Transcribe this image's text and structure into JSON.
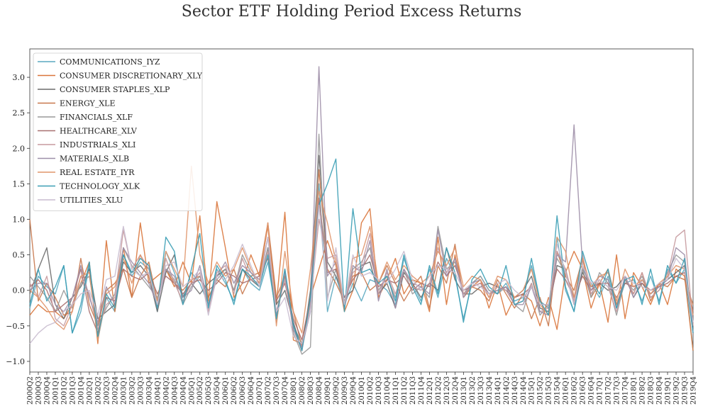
{
  "chart_data": {
    "type": "line",
    "title": "Sector ETF Holding Period Excess Returns",
    "ylim": [
      -1.15,
      3.4
    ],
    "yticks": [
      -1.0,
      -0.5,
      0.0,
      0.5,
      1.0,
      1.5,
      2.0,
      2.5,
      3.0
    ],
    "ytick_labels": [
      "−1.0",
      "−0.5",
      "0.0",
      "0.5",
      "1.0",
      "1.5",
      "2.0",
      "2.5",
      "3.0"
    ],
    "grid": false,
    "legend_position": "upper-left",
    "x": [
      "2000Q2",
      "2000Q3",
      "2000Q4",
      "2001Q1",
      "2001Q2",
      "2001Q3",
      "2001Q4",
      "2002Q1",
      "2002Q2",
      "2002Q3",
      "2002Q4",
      "2003Q1",
      "2003Q2",
      "2003Q3",
      "2003Q4",
      "2004Q1",
      "2004Q2",
      "2004Q3",
      "2004Q4",
      "2005Q1",
      "2005Q2",
      "2005Q3",
      "2005Q4",
      "2006Q1",
      "2006Q2",
      "2006Q3",
      "2006Q4",
      "2007Q1",
      "2007Q2",
      "2007Q3",
      "2007Q4",
      "2008Q1",
      "2008Q2",
      "2008Q3",
      "2008Q4",
      "2009Q1",
      "2009Q2",
      "2009Q3",
      "2009Q4",
      "2010Q1",
      "2010Q2",
      "2010Q3",
      "2010Q4",
      "2011Q1",
      "2011Q2",
      "2011Q3",
      "2011Q4",
      "2012Q1",
      "2012Q2",
      "2012Q3",
      "2012Q4",
      "2013Q1",
      "2013Q2",
      "2013Q3",
      "2013Q4",
      "2014Q1",
      "2014Q2",
      "2014Q3",
      "2014Q4",
      "2015Q1",
      "2015Q2",
      "2015Q3",
      "2015Q4",
      "2016Q1",
      "2016Q2",
      "2016Q3",
      "2016Q4",
      "2017Q1",
      "2017Q2",
      "2017Q3",
      "2017Q4",
      "2018Q1",
      "2018Q2",
      "2018Q3",
      "2018Q4",
      "2019Q1",
      "2019Q2",
      "2019Q3",
      "2019Q4"
    ],
    "xtick_labels": [
      "2000Q2",
      "2000Q3",
      "2000Q4",
      "2001Q1",
      "2001Q2",
      "2001Q3",
      "2001Q4",
      "2002Q1",
      "2002Q2",
      "2002Q3",
      "2002Q4",
      "2003Q1",
      "2003Q2",
      "2003Q3",
      "2003Q4",
      "2004Q1",
      "2004Q2",
      "2004Q3",
      "2004Q4",
      "2005Q1",
      "2005Q2",
      "2005Q3",
      "2005Q4",
      "2006Q1",
      "2006Q2",
      "2006Q3",
      "2006Q4",
      "2007Q1",
      "2007Q2",
      "2007Q3",
      "2007Q4",
      "2008Q1",
      "2008Q2",
      "2008Q3",
      "2008Q4",
      "2009Q1",
      "2009Q2",
      "2009Q3",
      "2009Q4",
      "2010Q1",
      "2010Q2",
      "2010Q3",
      "2010Q4",
      "2011Q1",
      "2011Q2",
      "2011Q3",
      "2011Q4",
      "2012Q1",
      "2012Q2",
      "2012Q3",
      "2012Q4",
      "2013Q1",
      "2013Q2",
      "2013Q3",
      "2013Q4",
      "2014Q1",
      "2014Q2",
      "2014Q3",
      "2014Q4",
      "2015Q1",
      "2015Q2",
      "2015Q3",
      "2015Q4",
      "2016Q1",
      "2016Q2",
      "2016Q3",
      "2016Q4",
      "2017Q1",
      "2017Q2",
      "2017Q3",
      "2017Q4",
      "2018Q1",
      "2018Q2",
      "2018Q3",
      "2018Q4",
      "2019Q1",
      "2019Q2",
      "2019Q3",
      "2019Q4"
    ],
    "series": [
      {
        "name": "COMMUNICATIONS_IYZ",
        "color": "#5aa9c0",
        "values": [
          -0.25,
          0.2,
          0.05,
          -0.05,
          0.35,
          -0.6,
          -0.3,
          0.35,
          -0.7,
          -0.1,
          -0.3,
          0.5,
          0.2,
          0.4,
          0.3,
          -0.3,
          0.55,
          0.25,
          -0.1,
          0.25,
          0.1,
          -0.2,
          0.3,
          0.1,
          -0.15,
          0.3,
          0.1,
          0.0,
          0.4,
          -0.35,
          0.2,
          -0.5,
          -0.75,
          -0.3,
          1.5,
          -0.3,
          0.2,
          -0.2,
          0.1,
          -0.15,
          0.15,
          0.1,
          0.0,
          -0.2,
          0.45,
          0.1,
          -0.15,
          0.3,
          -0.1,
          0.45,
          0.2,
          -0.4,
          0.1,
          0.2,
          0.0,
          -0.05,
          0.1,
          -0.15,
          -0.1,
          0.35,
          -0.15,
          -0.25,
          0.75,
          0.0,
          -0.3,
          0.3,
          0.1,
          -0.1,
          0.2,
          -0.25,
          0.1,
          0.15,
          -0.15,
          0.2,
          -0.15,
          0.3,
          0.1,
          0.3,
          -0.85
        ]
      },
      {
        "name": "CONSUMER DISCRETIONARY_XLY",
        "color": "#d9753b",
        "values": [
          -0.35,
          -0.2,
          -0.3,
          -0.3,
          -0.4,
          -0.2,
          0.1,
          0.4,
          -0.75,
          0.7,
          -0.3,
          0.6,
          -0.1,
          0.95,
          0.1,
          0.2,
          0.3,
          0.05,
          0.4,
          0.1,
          1.05,
          -0.15,
          1.25,
          0.6,
          -0.1,
          0.1,
          0.5,
          0.2,
          0.9,
          -0.2,
          1.1,
          -0.7,
          -0.75,
          -0.1,
          0.3,
          0.7,
          0.35,
          -0.3,
          0.0,
          0.95,
          1.15,
          -0.1,
          0.15,
          0.45,
          -0.05,
          0.15,
          0.1,
          -0.3,
          0.75,
          -0.2,
          0.5,
          -0.05,
          0.05,
          0.15,
          -0.25,
          0.1,
          -0.35,
          -0.1,
          -0.05,
          -0.15,
          -0.5,
          -0.1,
          -0.55,
          0.25,
          0.55,
          0.3,
          -0.25,
          0.1,
          -0.45,
          0.5,
          -0.4,
          0.25,
          0.05,
          -0.2,
          0.1,
          -0.2,
          0.3,
          0.2,
          -0.85
        ]
      },
      {
        "name": "CONSUMER STAPLES_XLP",
        "color": "#6b6b6b",
        "values": [
          -0.05,
          0.3,
          0.6,
          -0.2,
          -0.4,
          -0.1,
          0.05,
          0.3,
          -0.4,
          -0.3,
          -0.2,
          0.4,
          0.25,
          0.35,
          0.2,
          -0.3,
          0.25,
          0.5,
          -0.1,
          0.1,
          -0.05,
          0.1,
          0.2,
          0.3,
          0.0,
          0.3,
          0.15,
          0.05,
          0.6,
          -0.2,
          0.0,
          -0.45,
          -0.85,
          0.0,
          1.9,
          0.4,
          0.2,
          -0.1,
          0.0,
          0.35,
          0.4,
          -0.05,
          0.1,
          -0.25,
          0.25,
          0.1,
          -0.1,
          0.1,
          0.0,
          0.6,
          0.15,
          -0.05,
          -0.05,
          0.05,
          0.1,
          0.05,
          0.0,
          -0.1,
          0.0,
          0.2,
          -0.25,
          -0.3,
          0.35,
          0.3,
          -0.2,
          0.25,
          0.05,
          0.1,
          0.0,
          0.05,
          0.2,
          -0.1,
          0.1,
          -0.05,
          0.05,
          0.15,
          0.25,
          0.35,
          -0.6
        ]
      },
      {
        "name": "ENERGY_XLE",
        "color": "#c8784c",
        "values": [
          1.0,
          -0.15,
          0.1,
          -0.1,
          -0.35,
          -0.3,
          0.45,
          -0.2,
          -0.5,
          0.0,
          0.1,
          0.3,
          -0.1,
          0.2,
          0.4,
          -0.15,
          0.3,
          0.1,
          0.0,
          0.15,
          0.2,
          -0.1,
          0.15,
          0.05,
          0.3,
          -0.05,
          0.2,
          0.25,
          0.95,
          -0.1,
          0.2,
          -0.3,
          -0.8,
          -0.15,
          1.7,
          0.3,
          0.1,
          -0.15,
          0.2,
          0.25,
          0.0,
          0.1,
          0.35,
          0.1,
          -0.15,
          0.05,
          0.2,
          -0.25,
          0.35,
          0.1,
          0.65,
          -0.1,
          0.05,
          0.0,
          -0.15,
          0.15,
          -0.05,
          -0.25,
          -0.05,
          -0.4,
          -0.1,
          -0.5,
          0.55,
          0.2,
          0.0,
          0.45,
          -0.1,
          0.1,
          0.3,
          -0.2,
          0.15,
          -0.05,
          0.25,
          -0.15,
          0.1,
          0.05,
          0.2,
          0.15,
          -0.2
        ]
      },
      {
        "name": "FINANCIALS_XLF",
        "color": "#999999",
        "values": [
          0.2,
          0.05,
          -0.1,
          -0.3,
          0.0,
          -0.25,
          0.1,
          0.2,
          -0.5,
          -0.25,
          -0.05,
          0.6,
          0.35,
          0.2,
          0.05,
          -0.1,
          0.3,
          0.15,
          -0.2,
          0.05,
          0.2,
          -0.2,
          0.15,
          0.3,
          0.0,
          0.5,
          0.25,
          0.1,
          0.6,
          -0.45,
          0.3,
          -0.6,
          -0.9,
          -0.8,
          2.2,
          -0.1,
          0.3,
          -0.25,
          0.3,
          0.4,
          0.6,
          0.0,
          0.2,
          -0.1,
          0.3,
          -0.05,
          0.05,
          -0.1,
          0.9,
          0.3,
          0.4,
          -0.05,
          0.1,
          0.2,
          0.0,
          -0.05,
          0.05,
          -0.2,
          -0.3,
          0.1,
          -0.35,
          -0.2,
          0.45,
          0.25,
          -0.1,
          0.3,
          -0.1,
          0.25,
          0.1,
          -0.35,
          0.15,
          0.0,
          0.2,
          -0.1,
          0.0,
          0.25,
          0.5,
          0.4,
          -0.5
        ]
      },
      {
        "name": "HEALTHCARE_XLV",
        "color": "#a87070",
        "values": [
          0.05,
          0.15,
          0.0,
          -0.3,
          -0.2,
          -0.1,
          0.3,
          -0.3,
          -0.6,
          -0.1,
          -0.15,
          0.3,
          0.2,
          0.15,
          0.25,
          -0.05,
          0.2,
          0.1,
          -0.05,
          0.1,
          0.15,
          0.0,
          0.1,
          0.25,
          0.2,
          0.1,
          0.15,
          0.2,
          0.45,
          -0.15,
          0.1,
          -0.4,
          -0.7,
          -0.1,
          1.3,
          0.25,
          0.3,
          -0.1,
          0.15,
          0.3,
          0.5,
          0.05,
          0.15,
          0.1,
          0.2,
          0.0,
          0.1,
          0.05,
          0.4,
          0.2,
          0.35,
          0.0,
          0.05,
          0.1,
          -0.05,
          0.0,
          0.05,
          -0.1,
          -0.05,
          0.05,
          -0.2,
          -0.2,
          0.3,
          0.15,
          -0.1,
          0.2,
          0.0,
          0.1,
          0.1,
          -0.1,
          0.1,
          0.05,
          0.1,
          0.0,
          0.05,
          0.1,
          0.2,
          0.25,
          -0.3
        ]
      },
      {
        "name": "INDUSTRIALS_XLI",
        "color": "#c79a9f",
        "values": [
          0.1,
          -0.1,
          0.2,
          -0.4,
          -0.5,
          -0.2,
          0.2,
          -0.05,
          -0.55,
          -0.2,
          -0.1,
          0.85,
          0.3,
          0.5,
          0.3,
          -0.25,
          0.45,
          0.1,
          -0.15,
          0.1,
          0.25,
          -0.3,
          0.25,
          0.35,
          -0.05,
          0.45,
          0.15,
          0.1,
          0.55,
          -0.3,
          0.15,
          -0.55,
          -0.85,
          -0.2,
          1.0,
          0.45,
          0.5,
          -0.2,
          0.25,
          0.35,
          0.8,
          -0.05,
          0.25,
          -0.05,
          0.3,
          0.05,
          0.0,
          0.1,
          0.6,
          0.25,
          0.45,
          -0.05,
          0.05,
          0.1,
          -0.1,
          0.05,
          0.0,
          -0.2,
          -0.15,
          0.1,
          -0.3,
          -0.25,
          0.55,
          0.3,
          -0.15,
          0.5,
          -0.05,
          0.15,
          0.05,
          -0.3,
          0.2,
          -0.05,
          0.25,
          -0.1,
          0.0,
          0.2,
          0.75,
          0.85,
          -0.5
        ]
      },
      {
        "name": "MATERIALS_XLB",
        "color": "#9e8fa8",
        "values": [
          0.0,
          0.1,
          0.1,
          -0.2,
          -0.3,
          -0.1,
          0.35,
          -0.1,
          -0.45,
          0.05,
          -0.2,
          0.6,
          0.4,
          0.25,
          0.1,
          -0.2,
          0.3,
          0.2,
          -0.1,
          0.0,
          0.35,
          -0.2,
          0.2,
          0.4,
          0.1,
          0.35,
          0.25,
          0.15,
          0.75,
          -0.35,
          0.25,
          -0.55,
          -0.8,
          -0.3,
          3.15,
          0.2,
          0.4,
          -0.25,
          0.35,
          0.25,
          0.7,
          -0.15,
          0.3,
          -0.25,
          0.3,
          0.1,
          0.05,
          -0.05,
          0.85,
          0.2,
          0.45,
          -0.1,
          0.1,
          0.15,
          -0.05,
          0.0,
          0.05,
          -0.2,
          -0.2,
          0.05,
          -0.3,
          -0.35,
          0.5,
          0.4,
          2.33,
          0.35,
          0.0,
          0.2,
          0.15,
          -0.25,
          0.2,
          -0.1,
          0.15,
          -0.05,
          0.05,
          0.15,
          0.6,
          0.5,
          -0.6
        ]
      },
      {
        "name": "REAL ESTATE_IYR",
        "color": "#e0956a",
        "values": [
          0.0,
          -0.1,
          -0.25,
          -0.45,
          -0.55,
          -0.3,
          0.2,
          0.25,
          -0.7,
          -0.05,
          0.05,
          0.45,
          0.1,
          0.5,
          0.2,
          -0.15,
          0.55,
          0.3,
          0.05,
          1.75,
          0.5,
          0.1,
          0.4,
          0.2,
          0.3,
          0.6,
          0.3,
          0.1,
          0.95,
          -0.5,
          0.55,
          -0.3,
          -0.6,
          0.3,
          1.4,
          0.95,
          0.4,
          -0.2,
          0.45,
          0.5,
          0.9,
          0.1,
          0.4,
          0.15,
          0.35,
          0.2,
          0.1,
          0.2,
          0.55,
          0.35,
          0.6,
          0.05,
          0.2,
          0.15,
          -0.1,
          0.2,
          0.15,
          -0.1,
          0.0,
          0.3,
          -0.2,
          -0.35,
          0.75,
          0.55,
          -0.1,
          0.45,
          0.05,
          0.2,
          0.25,
          -0.15,
          0.3,
          0.05,
          0.15,
          -0.05,
          0.1,
          0.2,
          0.35,
          0.3,
          -0.35
        ]
      },
      {
        "name": "TECHNOLOGY_XLK",
        "color": "#3b9fb5",
        "values": [
          -0.2,
          0.3,
          -0.15,
          0.05,
          0.35,
          -0.6,
          -0.2,
          0.4,
          -0.65,
          -0.05,
          -0.25,
          0.5,
          0.25,
          0.45,
          0.35,
          -0.25,
          0.75,
          0.55,
          -0.2,
          0.3,
          0.8,
          -0.25,
          0.35,
          0.15,
          -0.2,
          0.3,
          0.2,
          0.05,
          0.5,
          -0.4,
          0.3,
          -0.5,
          -0.85,
          -0.1,
          1.2,
          1.5,
          1.85,
          -0.3,
          1.15,
          0.25,
          0.3,
          0.1,
          0.2,
          -0.15,
          0.5,
          0.05,
          -0.2,
          0.35,
          -0.05,
          0.6,
          0.25,
          -0.45,
          0.15,
          0.3,
          0.05,
          -0.05,
          0.35,
          -0.2,
          -0.15,
          0.45,
          -0.15,
          -0.35,
          1.05,
          0.05,
          -0.3,
          0.55,
          0.15,
          -0.05,
          0.3,
          -0.25,
          0.15,
          0.2,
          -0.2,
          0.3,
          -0.2,
          0.35,
          0.1,
          0.45,
          -0.6
        ]
      },
      {
        "name": "UTILITIES_XLU",
        "color": "#c9bccf",
        "values": [
          -0.75,
          -0.6,
          -0.5,
          -0.45,
          -0.3,
          -0.2,
          -0.05,
          0.0,
          -0.35,
          0.15,
          0.2,
          0.9,
          0.3,
          0.2,
          0.25,
          -0.2,
          0.35,
          0.4,
          0.05,
          0.15,
          0.3,
          -0.35,
          0.2,
          0.15,
          0.35,
          0.65,
          0.35,
          0.05,
          0.75,
          -0.3,
          -0.1,
          -0.65,
          -0.75,
          -0.3,
          1.2,
          -0.15,
          0.6,
          -0.2,
          0.5,
          0.2,
          0.25,
          0.15,
          0.1,
          0.3,
          0.55,
          0.15,
          0.0,
          0.2,
          0.35,
          0.3,
          0.25,
          0.0,
          0.1,
          0.05,
          -0.05,
          0.1,
          0.15,
          0.0,
          -0.1,
          0.05,
          -0.2,
          -0.2,
          0.65,
          0.25,
          -0.2,
          0.35,
          0.1,
          0.15,
          0.05,
          0.0,
          0.2,
          0.1,
          0.05,
          0.0,
          0.1,
          0.15,
          0.45,
          0.3,
          -0.45
        ]
      }
    ]
  }
}
